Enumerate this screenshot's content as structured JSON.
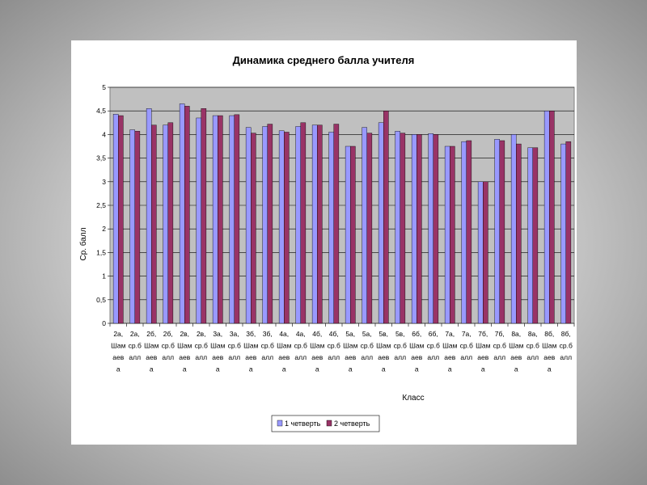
{
  "chart_data": {
    "type": "bar",
    "title": "Динамика среднего балла учителя",
    "xlabel": "Класс",
    "ylabel": "Ср. балл",
    "ylim": [
      0,
      5
    ],
    "yticks": [
      "0",
      "0,5",
      "1",
      "1,5",
      "2",
      "2,5",
      "3",
      "3,5",
      "4",
      "4,5",
      "5"
    ],
    "grid": "horizontal",
    "legend_position": "bottom",
    "categories": [
      [
        "2а,",
        "Шам",
        "аев",
        "а"
      ],
      [
        "2а,",
        "ср.б",
        "алл"
      ],
      [
        "2б,",
        "Шам",
        "аев",
        "а"
      ],
      [
        "2б,",
        "ср.б",
        "алл"
      ],
      [
        "2в,",
        "Шам",
        "аев",
        "а"
      ],
      [
        "2в,",
        "ср.б",
        "алл"
      ],
      [
        "3а,",
        "Шам",
        "аев",
        "а"
      ],
      [
        "3а,",
        "ср.б",
        "алл"
      ],
      [
        "3б,",
        "Шам",
        "аев",
        "а"
      ],
      [
        "3б,",
        "ср.б",
        "алл"
      ],
      [
        "4а,",
        "Шам",
        "аев",
        "а"
      ],
      [
        "4а,",
        "ср.б",
        "алл"
      ],
      [
        "4б,",
        "Шам",
        "аев",
        "а"
      ],
      [
        "4б,",
        "ср.б",
        "алл"
      ],
      [
        "5а,",
        "Шам",
        "аев",
        "а"
      ],
      [
        "5а,",
        "ср.б",
        "алл"
      ],
      [
        "5в,",
        "Шам",
        "аев",
        "а"
      ],
      [
        "5в,",
        "ср.б",
        "алл"
      ],
      [
        "6б,",
        "Шам",
        "аев",
        "а"
      ],
      [
        "6б,",
        "ср.б",
        "алл"
      ],
      [
        "7а,",
        "Шам",
        "аев",
        "а"
      ],
      [
        "7а,",
        "ср.б",
        "алл"
      ],
      [
        "7б,",
        "Шам",
        "аев",
        "а"
      ],
      [
        "7б,",
        "ср.б",
        "алл"
      ],
      [
        "8а,",
        "Шам",
        "аев",
        "а"
      ],
      [
        "8а,",
        "ср.б",
        "алл"
      ],
      [
        "8б,",
        "Шам",
        "аев",
        "а"
      ],
      [
        "8б,",
        "ср.б",
        "алл"
      ]
    ],
    "series": [
      {
        "name": "1 четверть",
        "color": "#9999ff",
        "values": [
          4.43,
          4.1,
          4.55,
          4.2,
          4.65,
          4.35,
          4.4,
          4.4,
          4.15,
          4.17,
          4.08,
          4.17,
          4.2,
          4.05,
          3.75,
          4.15,
          4.25,
          4.07,
          4.0,
          4.02,
          3.75,
          3.85,
          3.0,
          3.9,
          4.0,
          3.72,
          4.5,
          3.8
        ]
      },
      {
        "name": "2 четверть",
        "color": "#993366",
        "values": [
          4.4,
          4.07,
          4.2,
          4.25,
          4.6,
          4.55,
          4.4,
          4.42,
          4.03,
          4.22,
          4.05,
          4.25,
          4.2,
          4.22,
          3.75,
          4.03,
          4.5,
          4.03,
          4.0,
          4.0,
          3.75,
          3.87,
          3.0,
          3.87,
          3.8,
          3.72,
          4.5,
          3.85
        ]
      }
    ],
    "plot_background": "#c0c0c0"
  }
}
